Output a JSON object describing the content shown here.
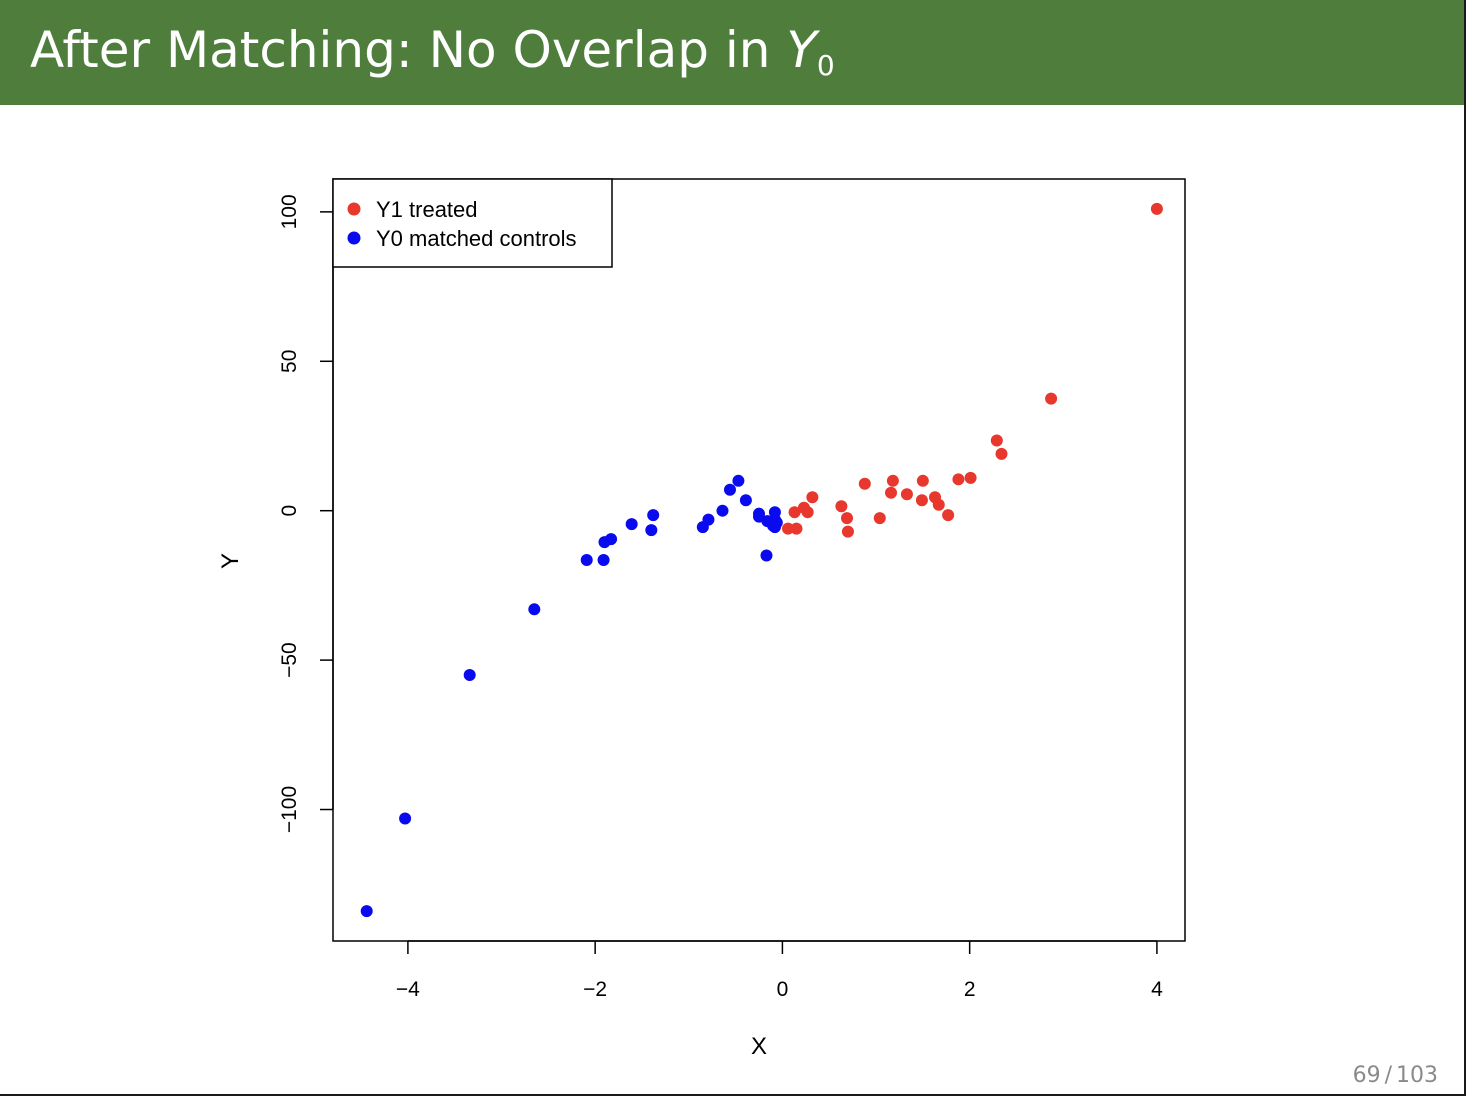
{
  "slide": {
    "title_prefix": "After Matching: No Overlap in ",
    "title_var": "Y",
    "title_sub": "0",
    "page_current": "69",
    "page_sep": "/",
    "page_total": "103"
  },
  "colors": {
    "header_bg": "#4e7d3c",
    "treated": "#e8372c",
    "control": "#0a0aef"
  },
  "chart_data": {
    "type": "scatter",
    "title": "",
    "xlabel": "X",
    "ylabel": "Y",
    "xlim": [
      -4.8,
      4.3
    ],
    "ylim": [
      -144,
      111
    ],
    "xticks": [
      -4,
      -2,
      0,
      2,
      4
    ],
    "xtick_labels": [
      "−4",
      "−2",
      "0",
      "2",
      "4"
    ],
    "yticks": [
      -100,
      -50,
      0,
      50,
      100
    ],
    "ytick_labels": [
      "−100",
      "−50",
      "0",
      "50",
      "100"
    ],
    "grid": false,
    "legend_position": "top-left",
    "series": [
      {
        "name": "Y1 treated",
        "color": "#e8372c",
        "points": [
          [
            4.0,
            101
          ],
          [
            2.87,
            37.5
          ],
          [
            2.29,
            23.5
          ],
          [
            2.34,
            19
          ],
          [
            2.01,
            11
          ],
          [
            1.88,
            10.5
          ],
          [
            1.5,
            10
          ],
          [
            1.18,
            10
          ],
          [
            0.88,
            9
          ],
          [
            1.16,
            6
          ],
          [
            1.33,
            5.5
          ],
          [
            1.63,
            4.5
          ],
          [
            0.32,
            4.5
          ],
          [
            1.49,
            3.5
          ],
          [
            1.67,
            2
          ],
          [
            0.63,
            1.5
          ],
          [
            0.23,
            1
          ],
          [
            0.13,
            -0.5
          ],
          [
            0.27,
            -0.5
          ],
          [
            1.77,
            -1.5
          ],
          [
            1.04,
            -2.5
          ],
          [
            0.69,
            -2.5
          ],
          [
            0.06,
            -6
          ],
          [
            0.15,
            -6
          ],
          [
            0.7,
            -7
          ]
        ]
      },
      {
        "name": "Y0 matched controls",
        "color": "#0a0aef",
        "points": [
          [
            -0.47,
            10
          ],
          [
            -0.56,
            7
          ],
          [
            -0.39,
            3.5
          ],
          [
            -0.64,
            0
          ],
          [
            -0.25,
            -1
          ],
          [
            -0.08,
            -0.5
          ],
          [
            -1.38,
            -1.5
          ],
          [
            -0.25,
            -2
          ],
          [
            -0.79,
            -3
          ],
          [
            -0.16,
            -3.5
          ],
          [
            -0.08,
            -3
          ],
          [
            -0.06,
            -4
          ],
          [
            -1.61,
            -4.5
          ],
          [
            -0.1,
            -5
          ],
          [
            -0.08,
            -5.5
          ],
          [
            -0.85,
            -5.5
          ],
          [
            -1.4,
            -6.5
          ],
          [
            -1.83,
            -9.5
          ],
          [
            -1.9,
            -10.5
          ],
          [
            -0.17,
            -15
          ],
          [
            -2.09,
            -16.5
          ],
          [
            -1.91,
            -16.5
          ],
          [
            -2.65,
            -33
          ],
          [
            -3.34,
            -55
          ],
          [
            -4.03,
            -103
          ],
          [
            -4.44,
            -134
          ]
        ]
      }
    ]
  }
}
